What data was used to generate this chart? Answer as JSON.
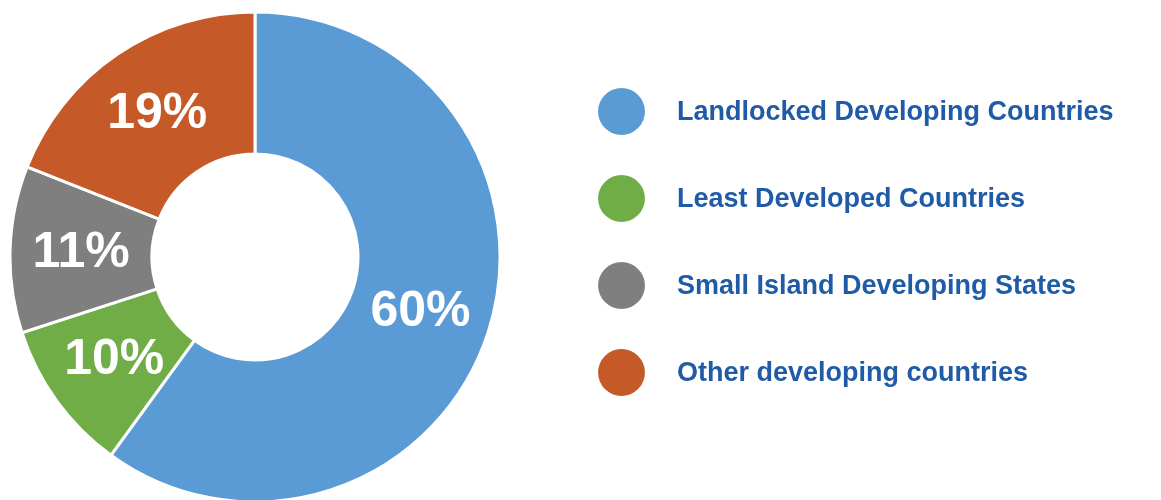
{
  "chart_data": {
    "type": "donut",
    "categories": [
      "Landlocked Developing Countries",
      "Least Developed Countries",
      "Small Island Developing States",
      "Other developing countries"
    ],
    "values": [
      60,
      10,
      11,
      19
    ],
    "colors": [
      "#5b9bd5",
      "#70ad47",
      "#7f7f7f",
      "#c55a28"
    ],
    "value_labels": [
      "60%",
      "10%",
      "11%",
      "19%"
    ],
    "legend": "right"
  }
}
